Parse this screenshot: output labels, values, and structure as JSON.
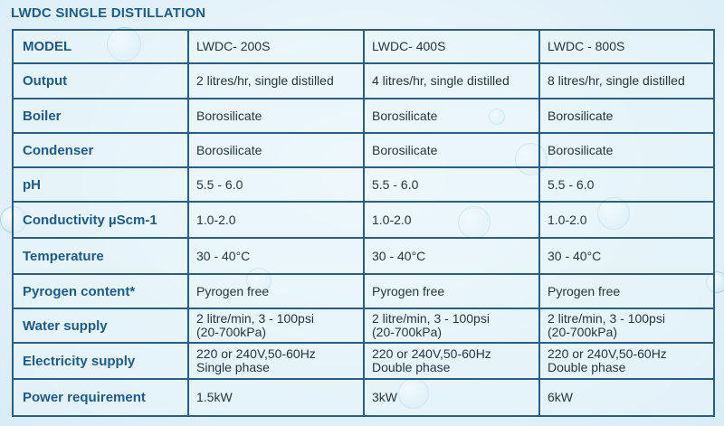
{
  "title": "LWDC SINGLE DISTILLATION",
  "table": {
    "rows": [
      {
        "label": "MODEL",
        "values": [
          "LWDC- 200S",
          "LWDC- 400S",
          "LWDC - 800S"
        ]
      },
      {
        "label": "Output",
        "values": [
          "2 litres/hr, single distilled",
          "4 litres/hr, single distilled",
          "8 litres/hr, single distilled"
        ]
      },
      {
        "label": "Boiler",
        "values": [
          "Borosilicate",
          "Borosilicate",
          "Borosilicate"
        ]
      },
      {
        "label": "Condenser",
        "values": [
          "Borosilicate",
          "Borosilicate",
          "Borosilicate"
        ]
      },
      {
        "label": "pH",
        "values": [
          "5.5 - 6.0",
          "5.5 - 6.0",
          "5.5 - 6.0"
        ]
      },
      {
        "label": "Conductivity  µScm-1",
        "values": [
          "1.0-2.0",
          "1.0-2.0",
          "1.0-2.0"
        ]
      },
      {
        "label": "Temperature",
        "values": [
          "30 - 40°C",
          "30 - 40°C",
          "30 - 40°C"
        ]
      },
      {
        "label": "Pyrogen content*",
        "values": [
          "Pyrogen free",
          "Pyrogen free",
          "Pyrogen free"
        ]
      },
      {
        "label": "Water supply",
        "values": [
          [
            "2 litre/min, 3 - 100psi",
            "(20-700kPa)"
          ],
          [
            "2 litre/min, 3 - 100psi",
            "(20-700kPa)"
          ],
          [
            "2 litre/min, 3 - 100psi",
            "(20-700kPa)"
          ]
        ]
      },
      {
        "label": "Electricity supply",
        "values": [
          [
            "220 or 240V,50-60Hz",
            "Single phase"
          ],
          [
            "220 or 240V,50-60Hz",
            "Double phase"
          ],
          [
            "220 or 240V,50-60Hz",
            "Double phase"
          ]
        ]
      },
      {
        "label": "Power requirement",
        "values": [
          "1.5kW",
          "3kW",
          "6kW"
        ]
      }
    ]
  },
  "colors": {
    "border": "#2a5d83",
    "label": "#1d5a85",
    "title": "#1b5d87",
    "background": "#e6f3fa"
  }
}
